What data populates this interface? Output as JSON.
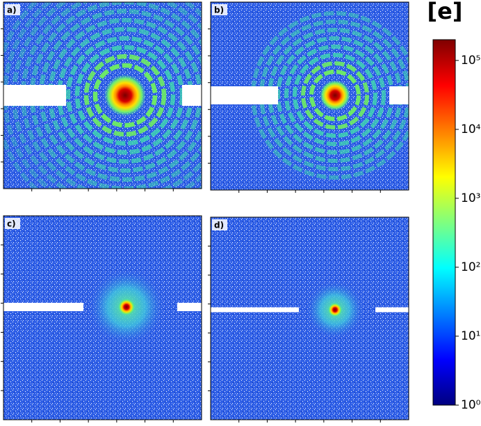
{
  "chart_data": {
    "type": "heatmap-panels",
    "panels": [
      {
        "label": "a)"
      },
      {
        "label": "b)"
      },
      {
        "label": "c)"
      },
      {
        "label": "d)"
      }
    ],
    "colorbar": {
      "label": "[e]",
      "log": true,
      "colormap": "jet",
      "ylim": [
        1,
        200000
      ],
      "yticks": [
        {
          "value": 1,
          "label": "10⁰"
        },
        {
          "value": 10,
          "label": "10¹"
        },
        {
          "value": 100,
          "label": "10²"
        },
        {
          "value": 1000,
          "label": "10³"
        },
        {
          "value": 10000,
          "label": "10⁴"
        },
        {
          "value": 100000,
          "label": "10⁵"
        }
      ]
    }
  }
}
